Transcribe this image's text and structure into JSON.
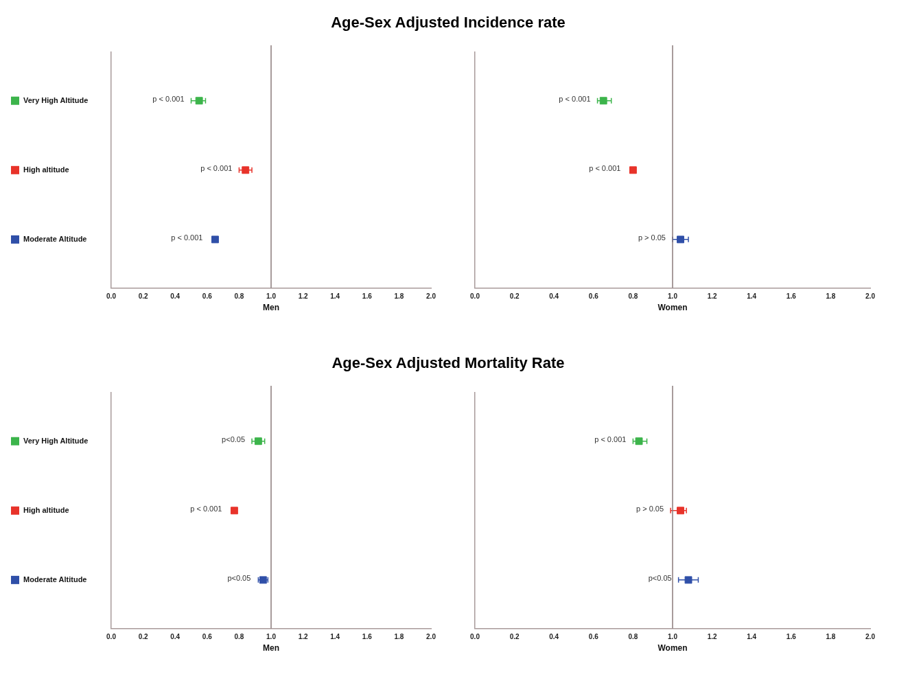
{
  "chart_data": [
    {
      "type": "scatter",
      "title": "Age-Sex Adjusted Incidence rate",
      "xlabel": "Men",
      "categories": [
        null,
        null,
        null
      ],
      "orientation": "horizontal",
      "marker": "square",
      "legend": "left",
      "grid": false,
      "tick_labels": "x",
      "xlim": [
        0,
        2
      ],
      "xticks": [
        {
          "value": 0,
          "label": "0.0"
        },
        {
          "value": 0.2,
          "label": "0.2"
        },
        {
          "value": 0.4,
          "label": "0.4"
        },
        {
          "value": 0.6,
          "label": "0.6"
        },
        {
          "value": 0.8,
          "label": "0.8"
        },
        {
          "value": 1,
          "label": "1.0"
        },
        {
          "value": 1.2,
          "label": "1.2"
        },
        {
          "value": 1.4,
          "label": "1.4"
        },
        {
          "value": 1.6,
          "label": "1.6"
        },
        {
          "value": 1.8,
          "label": "1.8"
        },
        {
          "value": 2,
          "label": "2.0"
        }
      ],
      "series": [
        {
          "name": "Very High Altitude",
          "color": "#3cb44b",
          "values": [
            0.55,
            null,
            null
          ],
          "errors": [
            [
              0.5,
              0.59
            ],
            null,
            null
          ]
        },
        {
          "name": "High altitude",
          "color": "#e8332a",
          "values": [
            null,
            0.84,
            null
          ],
          "errors": [
            null,
            [
              0.8,
              0.88
            ],
            null
          ]
        },
        {
          "name": "Moderate Altitude",
          "color": "#2f4fa8",
          "values": [
            null,
            null,
            0.65
          ],
          "errors": [
            null,
            null,
            null
          ]
        }
      ],
      "ref_lines": [
        {
          "axis": "x",
          "value": 1,
          "color": "#8a7a7a"
        }
      ],
      "annotations": [
        "p < 0.001",
        "p < 0.001",
        "p < 0.001"
      ]
    },
    {
      "type": "scatter",
      "xlabel": "Women",
      "categories": [
        null,
        null,
        null
      ],
      "orientation": "horizontal",
      "marker": "square",
      "legend": false,
      "grid": false,
      "tick_labels": "x",
      "xlim": [
        0,
        2
      ],
      "xticks": [
        {
          "value": 0,
          "label": "0.0"
        },
        {
          "value": 0.2,
          "label": "0.2"
        },
        {
          "value": 0.4,
          "label": "0.4"
        },
        {
          "value": 0.6,
          "label": "0.6"
        },
        {
          "value": 0.8,
          "label": "0.8"
        },
        {
          "value": 1,
          "label": "1.0"
        },
        {
          "value": 1.2,
          "label": "1.2"
        },
        {
          "value": 1.4,
          "label": "1.4"
        },
        {
          "value": 1.6,
          "label": "1.6"
        },
        {
          "value": 1.8,
          "label": "1.8"
        },
        {
          "value": 2,
          "label": "2.0"
        }
      ],
      "series": [
        {
          "color": "#3cb44b",
          "values": [
            0.65,
            null,
            null
          ],
          "errors": [
            [
              0.62,
              0.69
            ],
            null,
            null
          ]
        },
        {
          "color": "#e8332a",
          "values": [
            null,
            0.8,
            null
          ],
          "errors": [
            null,
            null,
            null
          ]
        },
        {
          "color": "#2f4fa8",
          "values": [
            null,
            null,
            1.04
          ],
          "errors": [
            null,
            null,
            [
              1.0,
              1.08
            ]
          ]
        }
      ],
      "ref_lines": [
        {
          "axis": "x",
          "value": 1,
          "color": "#8a7a7a"
        }
      ],
      "annotations": [
        "p < 0.001",
        "p < 0.001",
        "p > 0.05"
      ]
    },
    {
      "type": "scatter",
      "title": "Age-Sex Adjusted Mortality Rate",
      "xlabel": "Men",
      "categories": [
        null,
        null,
        null
      ],
      "orientation": "horizontal",
      "marker": "square",
      "legend": "left",
      "grid": false,
      "tick_labels": "x",
      "xlim": [
        0,
        2
      ],
      "xticks": [
        {
          "value": 0,
          "label": "0.0"
        },
        {
          "value": 0.2,
          "label": "0.2"
        },
        {
          "value": 0.4,
          "label": "0.4"
        },
        {
          "value": 0.6,
          "label": "0.6"
        },
        {
          "value": 0.8,
          "label": "0.8"
        },
        {
          "value": 1,
          "label": "1.0"
        },
        {
          "value": 1.2,
          "label": "1.2"
        },
        {
          "value": 1.4,
          "label": "1.4"
        },
        {
          "value": 1.6,
          "label": "1.6"
        },
        {
          "value": 1.8,
          "label": "1.8"
        },
        {
          "value": 2,
          "label": "2.0"
        }
      ],
      "series": [
        {
          "name": "Very High Altitude",
          "color": "#3cb44b",
          "values": [
            0.92,
            null,
            null
          ],
          "errors": [
            [
              0.88,
              0.96
            ],
            null,
            null
          ]
        },
        {
          "name": "High altitude",
          "color": "#e8332a",
          "values": [
            null,
            0.77,
            null
          ],
          "errors": [
            null,
            null,
            null
          ]
        },
        {
          "name": "Moderate Altitude",
          "color": "#2f4fa8",
          "values": [
            null,
            null,
            0.95
          ],
          "errors": [
            null,
            null,
            [
              0.92,
              0.98
            ]
          ]
        }
      ],
      "ref_lines": [
        {
          "axis": "x",
          "value": 1,
          "color": "#8a7a7a"
        }
      ],
      "annotations": [
        "p<0.05",
        "p < 0.001",
        "p<0.05"
      ]
    },
    {
      "type": "scatter",
      "xlabel": "Women",
      "categories": [
        null,
        null,
        null
      ],
      "orientation": "horizontal",
      "marker": "square",
      "legend": false,
      "grid": false,
      "tick_labels": "x",
      "xlim": [
        0,
        2
      ],
      "xticks": [
        {
          "value": 0,
          "label": "0.0"
        },
        {
          "value": 0.2,
          "label": "0.2"
        },
        {
          "value": 0.4,
          "label": "0.4"
        },
        {
          "value": 0.6,
          "label": "0.6"
        },
        {
          "value": 0.8,
          "label": "0.8"
        },
        {
          "value": 1,
          "label": "1.0"
        },
        {
          "value": 1.2,
          "label": "1.2"
        },
        {
          "value": 1.4,
          "label": "1.4"
        },
        {
          "value": 1.6,
          "label": "1.6"
        },
        {
          "value": 1.8,
          "label": "1.8"
        },
        {
          "value": 2,
          "label": "2.0"
        }
      ],
      "series": [
        {
          "color": "#3cb44b",
          "values": [
            0.83,
            null,
            null
          ],
          "errors": [
            [
              0.8,
              0.87
            ],
            null,
            null
          ]
        },
        {
          "color": "#e8332a",
          "values": [
            null,
            1.04,
            null
          ],
          "errors": [
            null,
            [
              0.99,
              1.07
            ],
            null
          ]
        },
        {
          "color": "#2f4fa8",
          "values": [
            null,
            null,
            1.08
          ],
          "errors": [
            null,
            null,
            [
              1.03,
              1.13
            ]
          ]
        }
      ],
      "ref_lines": [
        {
          "axis": "x",
          "value": 1,
          "color": "#8a7a7a"
        }
      ],
      "annotations": [
        "p < 0.001",
        "p > 0.05",
        "p<0.05"
      ]
    }
  ]
}
